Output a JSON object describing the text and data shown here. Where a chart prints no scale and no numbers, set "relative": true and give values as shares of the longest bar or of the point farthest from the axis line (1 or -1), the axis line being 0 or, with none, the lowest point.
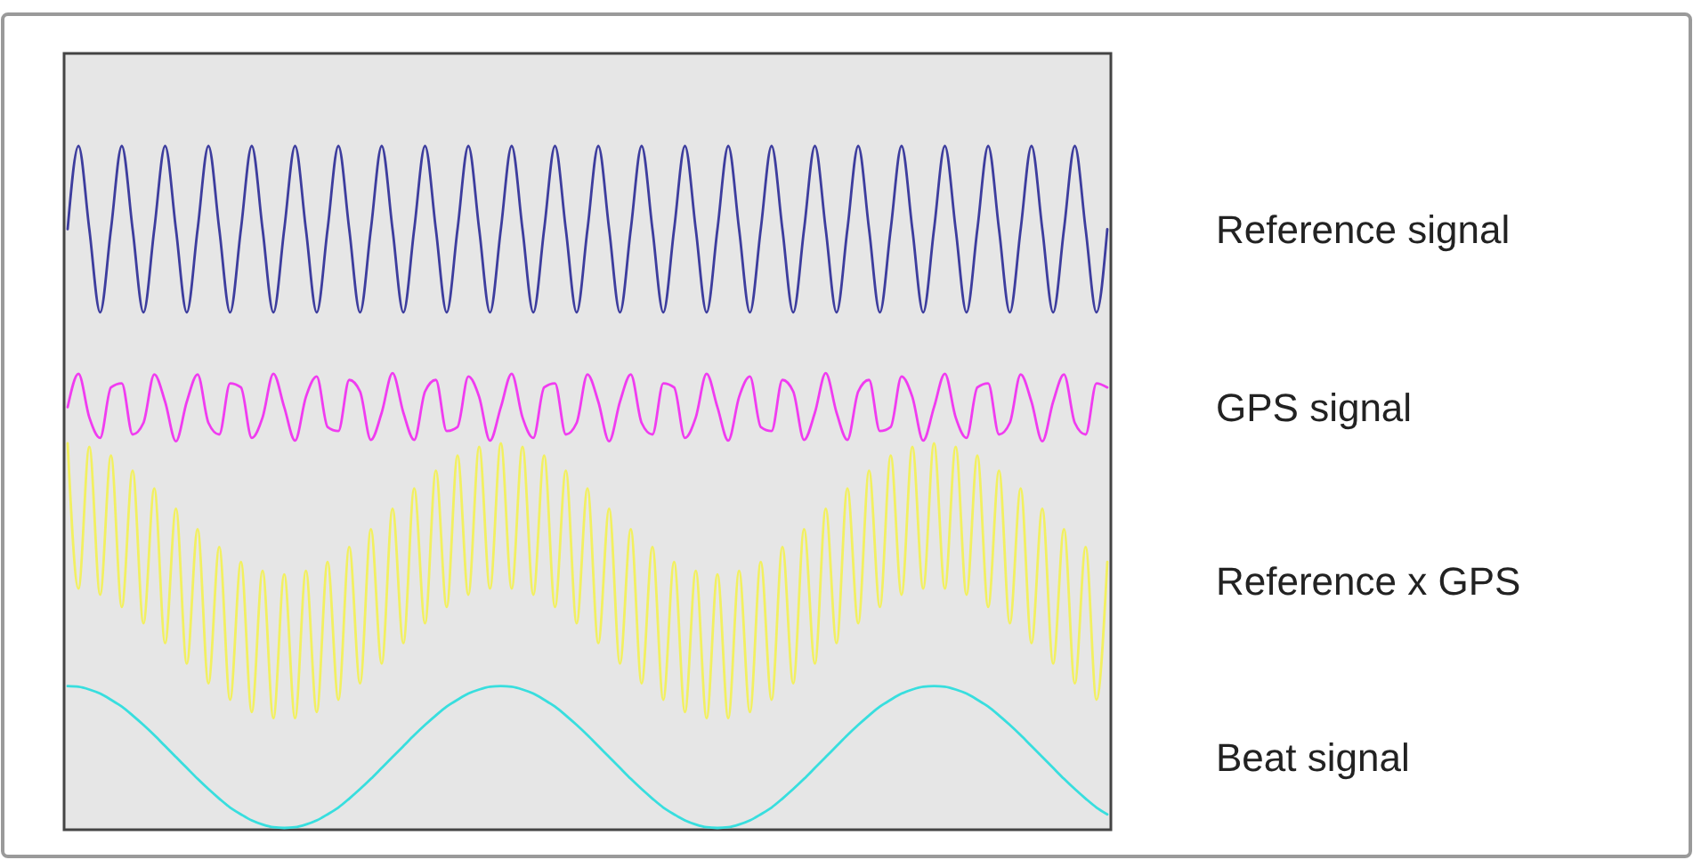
{
  "chart_data": {
    "type": "line",
    "relative": true,
    "legend": "right",
    "categories": [
      null,
      null,
      null,
      null,
      null,
      null,
      null,
      null,
      null,
      null,
      null,
      null,
      null,
      null,
      null,
      null,
      null,
      null,
      null,
      null,
      null,
      null,
      null,
      null,
      null,
      null,
      null,
      null,
      null,
      null,
      null,
      null,
      null,
      null,
      null,
      null,
      null,
      null,
      null,
      null,
      null,
      null,
      null,
      null,
      null,
      null,
      null,
      null,
      null,
      null,
      null,
      null,
      null,
      null,
      null,
      null,
      null,
      null,
      null,
      null,
      null,
      null,
      null,
      null,
      null,
      null,
      null,
      null,
      null,
      null,
      null,
      null,
      null,
      null,
      null,
      null,
      null,
      null,
      null,
      null,
      null,
      null,
      null,
      null,
      null,
      null,
      null,
      null,
      null,
      null,
      null,
      null,
      null,
      null,
      null,
      null,
      null
    ],
    "series": [
      {
        "name": "Reference signal",
        "color": "#3d3d9e",
        "values": [
          0.878,
          1,
          0.878,
          0.756,
          0.878,
          1,
          0.878,
          0.756,
          0.878,
          1,
          0.878,
          0.756,
          0.878,
          1,
          0.878,
          0.756,
          0.878,
          1,
          0.878,
          0.756,
          0.878,
          1,
          0.878,
          0.756,
          0.878,
          1,
          0.878,
          0.756,
          0.878,
          1,
          0.878,
          0.756,
          0.878,
          1,
          0.878,
          0.756,
          0.878,
          1,
          0.878,
          0.756,
          0.878,
          1,
          0.878,
          0.756,
          0.878,
          1,
          0.878,
          0.756,
          0.878,
          1,
          0.878,
          0.756,
          0.878,
          1,
          0.878,
          0.756,
          0.878,
          1,
          0.878,
          0.756,
          0.878,
          1,
          0.878,
          0.756,
          0.878,
          1,
          0.878,
          0.756,
          0.878,
          1,
          0.878,
          0.756,
          0.878,
          1,
          0.878,
          0.756,
          0.878,
          1,
          0.878,
          0.756,
          0.878,
          1,
          0.878,
          0.756,
          0.878,
          1,
          0.878,
          0.756,
          0.878,
          1,
          0.878,
          0.756,
          0.878,
          1,
          0.878,
          0.756,
          0.878
        ]
      },
      {
        "name": "GPS signal",
        "color": "#f03cf0",
        "values": [
          0.617,
          0.666,
          0.602,
          0.572,
          0.646,
          0.652,
          0.577,
          0.594,
          0.665,
          0.625,
          0.567,
          0.625,
          0.665,
          0.594,
          0.577,
          0.652,
          0.646,
          0.572,
          0.602,
          0.666,
          0.617,
          0.568,
          0.632,
          0.662,
          0.588,
          0.582,
          0.657,
          0.64,
          0.569,
          0.609,
          0.667,
          0.609,
          0.569,
          0.64,
          0.657,
          0.582,
          0.588,
          0.662,
          0.632,
          0.568,
          0.617,
          0.666,
          0.602,
          0.572,
          0.646,
          0.652,
          0.577,
          0.594,
          0.665,
          0.625,
          0.567,
          0.625,
          0.665,
          0.594,
          0.577,
          0.652,
          0.646,
          0.572,
          0.602,
          0.666,
          0.617,
          0.568,
          0.632,
          0.662,
          0.588,
          0.582,
          0.657,
          0.64,
          0.569,
          0.609,
          0.667,
          0.609,
          0.569,
          0.64,
          0.657,
          0.582,
          0.588,
          0.662,
          0.632,
          0.568,
          0.617,
          0.666,
          0.602,
          0.572,
          0.646,
          0.652,
          0.577,
          0.594,
          0.665,
          0.625,
          0.567,
          0.625,
          0.665,
          0.594,
          0.577,
          0.652,
          0.646
        ]
      },
      {
        "name": "Reference x GPS",
        "color": "#f2f060",
        "values": [
          0.564,
          0.351,
          0.559,
          0.342,
          0.546,
          0.324,
          0.524,
          0.3,
          0.498,
          0.271,
          0.468,
          0.241,
          0.438,
          0.212,
          0.412,
          0.188,
          0.39,
          0.17,
          0.377,
          0.161,
          0.372,
          0.161,
          0.377,
          0.17,
          0.39,
          0.188,
          0.412,
          0.212,
          0.438,
          0.241,
          0.468,
          0.271,
          0.498,
          0.3,
          0.524,
          0.324,
          0.546,
          0.342,
          0.559,
          0.351,
          0.564,
          0.351,
          0.559,
          0.342,
          0.546,
          0.324,
          0.524,
          0.3,
          0.498,
          0.271,
          0.468,
          0.241,
          0.438,
          0.212,
          0.412,
          0.188,
          0.39,
          0.17,
          0.377,
          0.161,
          0.372,
          0.161,
          0.377,
          0.17,
          0.39,
          0.188,
          0.412,
          0.212,
          0.438,
          0.241,
          0.468,
          0.271,
          0.498,
          0.3,
          0.524,
          0.324,
          0.546,
          0.342,
          0.559,
          0.351,
          0.564,
          0.351,
          0.559,
          0.342,
          0.546,
          0.324,
          0.524,
          0.3,
          0.498,
          0.271,
          0.468,
          0.241,
          0.438,
          0.212,
          0.412,
          0.188,
          0.39
        ]
      },
      {
        "name": "Beat signal",
        "color": "#38dede",
        "values": [
          0.208,
          0.207,
          0.203,
          0.197,
          0.188,
          0.178,
          0.165,
          0.151,
          0.136,
          0.12,
          0.104,
          0.088,
          0.072,
          0.057,
          0.043,
          0.03,
          0.02,
          0.011,
          0.005,
          0.001,
          0,
          0.001,
          0.005,
          0.011,
          0.02,
          0.03,
          0.043,
          0.057,
          0.072,
          0.088,
          0.104,
          0.12,
          0.136,
          0.151,
          0.165,
          0.178,
          0.188,
          0.197,
          0.203,
          0.207,
          0.208,
          0.207,
          0.203,
          0.197,
          0.188,
          0.178,
          0.165,
          0.151,
          0.136,
          0.12,
          0.104,
          0.088,
          0.072,
          0.057,
          0.043,
          0.03,
          0.02,
          0.011,
          0.005,
          0.001,
          0,
          0.001,
          0.005,
          0.011,
          0.02,
          0.03,
          0.043,
          0.057,
          0.072,
          0.088,
          0.104,
          0.12,
          0.136,
          0.151,
          0.165,
          0.178,
          0.188,
          0.197,
          0.203,
          0.207,
          0.208,
          0.207,
          0.203,
          0.197,
          0.188,
          0.178,
          0.165,
          0.151,
          0.136,
          0.12,
          0.104,
          0.088,
          0.072,
          0.057,
          0.043,
          0.03,
          0.02
        ]
      }
    ]
  }
}
